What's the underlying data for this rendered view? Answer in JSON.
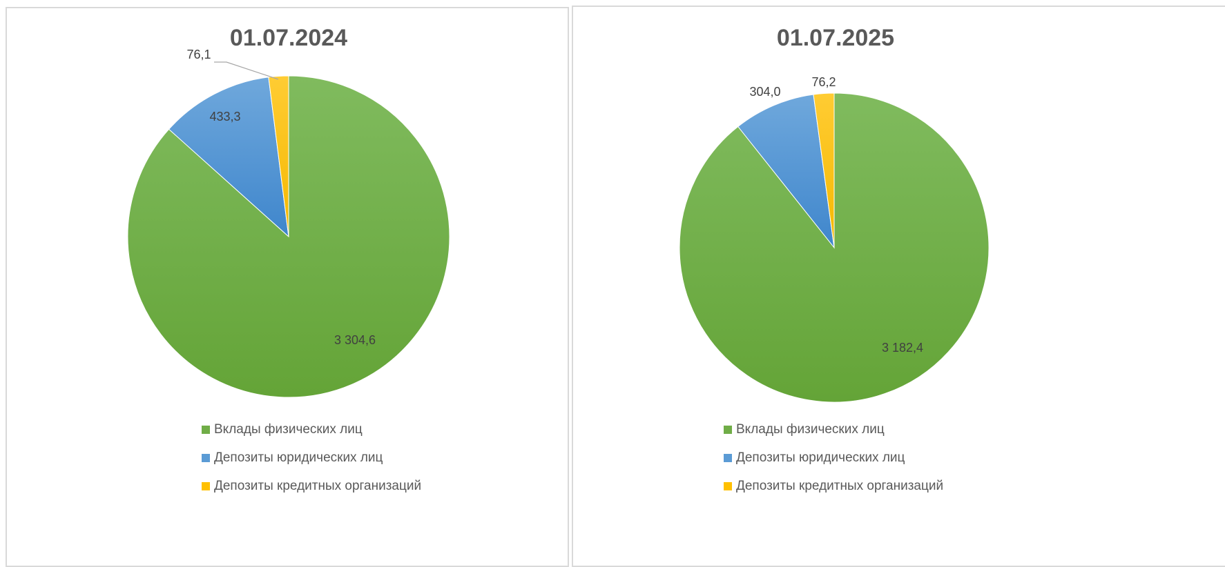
{
  "chart_data": [
    {
      "type": "pie",
      "title": "01.07.2024",
      "categories": [
        "Вклады физических лиц",
        "Депозиты юридических лиц",
        "Депозиты кредитных организаций"
      ],
      "values": [
        3304.6,
        433.3,
        76.1
      ],
      "labels": [
        "3 304,6",
        "433,3",
        "76,1"
      ],
      "colors": [
        "#70ad47",
        "#5b9bd5",
        "#ffc000"
      ],
      "legend": "bottom"
    },
    {
      "type": "pie",
      "title": "01.07.2025",
      "categories": [
        "Вклады физических лиц",
        "Депозиты юридических лиц",
        "Депозиты кредитных организаций"
      ],
      "values": [
        3182.4,
        304.0,
        76.2
      ],
      "labels": [
        "3 182,4",
        "304,0",
        "76,2"
      ],
      "colors": [
        "#70ad47",
        "#5b9bd5",
        "#ffc000"
      ],
      "legend": "bottom"
    }
  ]
}
